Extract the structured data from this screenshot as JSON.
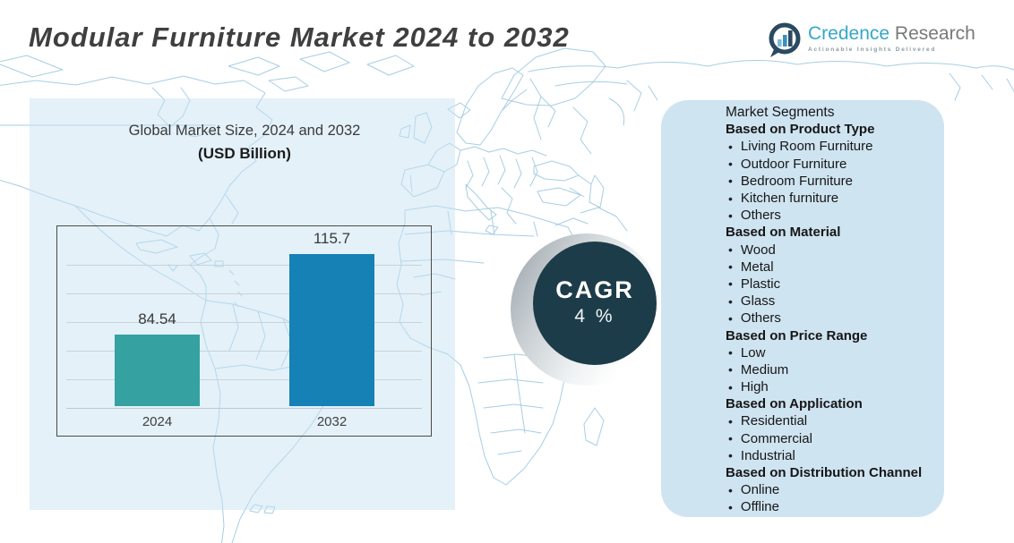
{
  "header": {
    "title": "Modular Furniture Market 2024 to 2032",
    "logo": {
      "brand_primary": "Credence",
      "brand_secondary": "Research",
      "tagline": "Actionable Insights Delivered"
    }
  },
  "chart_data": {
    "type": "bar",
    "title": "Global Market Size,  2024 and 2032",
    "unit_label": "(USD Billion)",
    "categories": [
      "2024",
      "2032"
    ],
    "values": [
      84.54,
      115.7
    ],
    "data_labels": [
      "84.54",
      "115.7"
    ],
    "bar_colors": [
      "#35a1a1",
      "#1581b5"
    ],
    "ylim": [
      57,
      127
    ],
    "grid": true,
    "legend_position": "none"
  },
  "cagr": {
    "label": "CAGR",
    "value": "4 %"
  },
  "segments": {
    "intro": "Market Segments",
    "groups": [
      {
        "header": "Based on Product Type",
        "items": [
          "Living Room Furniture",
          "Outdoor Furniture",
          "Bedroom Furniture",
          "Kitchen furniture",
          "Others"
        ]
      },
      {
        "header": "Based on Material",
        "items": [
          "Wood",
          "Metal",
          "Plastic",
          "Glass",
          "Others"
        ]
      },
      {
        "header": "Based on Price Range",
        "items": [
          "Low",
          "Medium",
          "High"
        ]
      },
      {
        "header": "Based on Application",
        "items": [
          "Residential",
          "Commercial",
          "Industrial"
        ]
      },
      {
        "header": "Based on Distribution Channel",
        "items": [
          "Online",
          "Offline"
        ]
      }
    ]
  },
  "colors": {
    "bar_2024": "#35a1a1",
    "bar_2032": "#1581b5",
    "cagr_circle": "#1d3c49",
    "right_panel_bg": "#cfe4f1",
    "left_panel_tint": "#e9f2f9",
    "map_line": "#a7cee2",
    "title_text": "#3f3f3f",
    "brand_teal": "#35a8c6",
    "brand_gray": "#77797b"
  }
}
